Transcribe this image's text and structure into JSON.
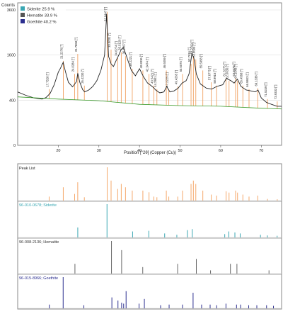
{
  "chart_data": [
    {
      "type": "line",
      "ylabel": "Counts",
      "xlabel": "Position [°2θ] (Copper (Cu))",
      "xlim": [
        10,
        75
      ],
      "ylim": [
        0,
        3600
      ],
      "y_scale": "sqrt",
      "yticks": [
        0,
        400,
        1600,
        3600
      ],
      "xticks": [
        20,
        30,
        40,
        50,
        60,
        70
      ],
      "legend": {
        "placement": "top-left",
        "entries": [
          {
            "label": "Siderite 25.9 %",
            "color": "#3aa7b3"
          },
          {
            "label": "Hematite 33.9 %",
            "color": "#555555"
          },
          {
            "label": "Goethite 40.2 %",
            "color": "#2b2e8f"
          }
        ]
      },
      "series": [
        {
          "color": "#222222",
          "x": [
            10,
            12,
            14,
            16,
            17,
            18,
            19,
            20,
            20.6,
            21.2,
            21.8,
            22.5,
            23.5,
            24.5,
            24.8,
            25.3,
            26,
            26.5,
            27.5,
            28.5,
            29.5,
            30.5,
            31.4,
            31.9,
            32.4,
            33,
            33.6,
            34.2,
            34.9,
            35.5,
            36,
            36.6,
            37.3,
            38,
            39,
            40,
            41,
            42,
            42.6,
            43.5,
            44,
            45,
            46,
            46.7,
            47.5,
            48.5,
            49.5,
            50.5,
            51.5,
            52.2,
            52.9,
            53.4,
            54,
            55,
            56.5,
            57.8,
            59,
            60.5,
            61.4,
            62.5,
            63.3,
            64.1,
            65,
            66.3,
            67.5,
            68.5,
            69.2,
            70,
            71.3,
            72.5,
            73.9,
            75
          ],
          "values": [
            560,
            490,
            440,
            420,
            450,
            530,
            720,
            1050,
            1180,
            1350,
            1050,
            780,
            670,
            800,
            1020,
            780,
            610,
            560,
            600,
            680,
            820,
            1100,
            1600,
            3400,
            1550,
            1300,
            1220,
            1400,
            1600,
            1800,
            1880,
            1650,
            1350,
            1100,
            950,
            1150,
            920,
            760,
            720,
            650,
            600,
            540,
            560,
            680,
            560,
            580,
            640,
            760,
            820,
            1000,
            1650,
            1500,
            1000,
            740,
            640,
            620,
            680,
            720,
            880,
            820,
            760,
            860,
            680,
            600,
            580,
            560,
            600,
            440,
            360,
            330,
            300,
            300
          ]
        },
        {
          "name": "",
          "color": "#3a9a2a",
          "x": [
            10,
            20,
            30,
            40,
            50,
            60,
            70,
            75
          ],
          "values": [
            460,
            420,
            390,
            330,
            310,
            300,
            270,
            260
          ]
        }
      ],
      "peaks": [
        {
          "label": "17.7528 [°]",
          "x": 17.75,
          "y": 620
        },
        {
          "label": "21.2276 [°]",
          "x": 21.23,
          "y": 1400
        },
        {
          "label": "24.0284 [°]",
          "x": 24.03,
          "y": 1000
        },
        {
          "label": "24.7868 [°]",
          "x": 24.79,
          "y": 1640
        },
        {
          "label": "26.4230 [°]",
          "x": 26.42,
          "y": 700
        },
        {
          "label": "32.0447 [°]",
          "x": 32.04,
          "y": 3500
        },
        {
          "label": "33.0031 [°]",
          "x": 33.0,
          "y": 1800
        },
        {
          "label": "34.6274 [°]",
          "x": 34.63,
          "y": 1500
        },
        {
          "label": "35.5120 [°]",
          "x": 35.51,
          "y": 1700
        },
        {
          "label": "36.5467 [°]",
          "x": 36.55,
          "y": 1560
        },
        {
          "label": "38.2221 [°]",
          "x": 38.22,
          "y": 1150
        },
        {
          "label": "40.8336 [°]",
          "x": 40.83,
          "y": 1100
        },
        {
          "label": "42.3474 [°]",
          "x": 42.35,
          "y": 1000
        },
        {
          "label": "43.5421 [°]",
          "x": 43.54,
          "y": 700
        },
        {
          "label": "44.2901 [°]",
          "x": 44.29,
          "y": 620
        },
        {
          "label": "46.6059 [°]",
          "x": 46.61,
          "y": 1100
        },
        {
          "label": "47.2225 [°]",
          "x": 47.22,
          "y": 620
        },
        {
          "label": "49.4265 [°]",
          "x": 49.43,
          "y": 680
        },
        {
          "label": "50.6075 [°]",
          "x": 50.61,
          "y": 1000
        },
        {
          "label": "52.7016 [°]",
          "x": 52.7,
          "y": 1300
        },
        {
          "label": "53.2700 [°]",
          "x": 53.27,
          "y": 1560
        },
        {
          "label": "53.8699 [°]",
          "x": 53.87,
          "y": 1450
        },
        {
          "label": "55.5958 [°]",
          "x": 55.6,
          "y": 1100
        },
        {
          "label": "57.6775 [°]",
          "x": 57.68,
          "y": 780
        },
        {
          "label": "58.9915 [°]",
          "x": 58.99,
          "y": 700
        },
        {
          "label": "61.3275 [°]",
          "x": 61.33,
          "y": 880
        },
        {
          "label": "62.0630 [°]",
          "x": 62.06,
          "y": 820
        },
        {
          "label": "63.6679 [°]",
          "x": 63.67,
          "y": 880
        },
        {
          "label": "64.1548 [°]",
          "x": 64.15,
          "y": 820
        },
        {
          "label": "65.4568 [°]",
          "x": 65.46,
          "y": 700
        },
        {
          "label": "66.9843 [°]",
          "x": 66.98,
          "y": 620
        },
        {
          "label": "69.1338 [°]",
          "x": 69.13,
          "y": 640
        },
        {
          "label": "71.5249 [°]",
          "x": 71.52,
          "y": 420
        },
        {
          "label": "73.9333 [°]",
          "x": 73.93,
          "y": 380
        }
      ]
    },
    {
      "type": "bar",
      "title": "Peak List",
      "color": "#f5a86a",
      "x": [
        17.75,
        21.23,
        24.03,
        24.79,
        26.42,
        32.04,
        33.0,
        34.63,
        35.51,
        36.55,
        38.22,
        40.83,
        42.35,
        43.54,
        44.29,
        46.61,
        47.22,
        49.43,
        50.61,
        52.7,
        53.27,
        53.87,
        55.6,
        57.68,
        58.99,
        61.33,
        62.06,
        63.67,
        64.15,
        65.46,
        66.98,
        69.13,
        71.52,
        73.93
      ],
      "values": [
        0.12,
        0.4,
        0.2,
        0.55,
        0.1,
        1.0,
        0.6,
        0.35,
        0.5,
        0.4,
        0.3,
        0.3,
        0.25,
        0.12,
        0.1,
        0.3,
        0.12,
        0.12,
        0.3,
        0.5,
        0.6,
        0.5,
        0.3,
        0.18,
        0.15,
        0.28,
        0.24,
        0.3,
        0.24,
        0.18,
        0.12,
        0.15,
        0.05,
        0.04
      ]
    },
    {
      "type": "bar",
      "title": "96-010-0678; Siderite",
      "color": "#3aa7b3",
      "x": [
        24.8,
        32.0,
        38.3,
        42.3,
        46.2,
        49.2,
        51.8,
        53.0,
        61.0,
        62.0,
        63.5,
        64.8,
        69.8,
        71.5,
        73.9
      ],
      "values": [
        0.3,
        1.0,
        0.18,
        0.2,
        0.12,
        0.08,
        0.22,
        0.25,
        0.1,
        0.18,
        0.15,
        0.12,
        0.08,
        0.06,
        0.05
      ]
    },
    {
      "type": "bar",
      "title": "96-008-2136; Hematite",
      "color": "#666666",
      "x": [
        24.1,
        33.1,
        35.6,
        40.8,
        49.4,
        54.0,
        57.5,
        62.4,
        64.0,
        71.9
      ],
      "values": [
        0.3,
        1.0,
        0.72,
        0.2,
        0.3,
        0.45,
        0.1,
        0.3,
        0.3,
        0.1
      ]
    },
    {
      "type": "bar",
      "title": "96-015-8966; Goethite",
      "color": "#2b2e8f",
      "x": [
        17.8,
        21.2,
        26.3,
        33.2,
        34.7,
        35.6,
        36.1,
        36.7,
        39.9,
        41.2,
        45.2,
        47.3,
        50.6,
        53.2,
        55.3,
        57.4,
        59.0,
        61.3,
        63.9,
        64.9,
        66.9,
        68.9,
        71.3,
        73.0
      ],
      "values": [
        0.12,
        1.0,
        0.1,
        0.35,
        0.25,
        0.18,
        0.15,
        0.55,
        0.15,
        0.3,
        0.1,
        0.12,
        0.12,
        0.5,
        0.12,
        0.12,
        0.1,
        0.15,
        0.12,
        0.12,
        0.1,
        0.1,
        0.1,
        0.08
      ]
    }
  ]
}
